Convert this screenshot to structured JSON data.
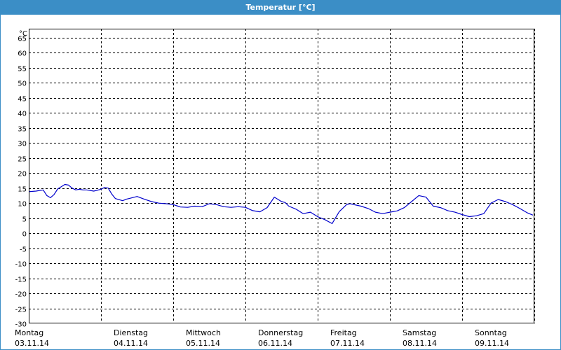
{
  "window": {
    "title": "Temperatur [°C]"
  },
  "chart_data": {
    "type": "line",
    "title": "Temperatur [°C]",
    "yunit": "°C",
    "ylim": [
      -30,
      68
    ],
    "yticks": [
      65,
      60,
      55,
      50,
      45,
      40,
      35,
      30,
      25,
      20,
      15,
      10,
      5,
      0,
      -5,
      -10,
      -15,
      -20,
      -25,
      -30
    ],
    "xlim": [
      0,
      7
    ],
    "grid": true,
    "days": [
      {
        "name": "Montag",
        "date": "03.11.14"
      },
      {
        "name": "Dienstag",
        "date": "04.11.14"
      },
      {
        "name": "Mittwoch",
        "date": "05.11.14"
      },
      {
        "name": "Donnerstag",
        "date": "06.11.14"
      },
      {
        "name": "Freitag",
        "date": "07.11.14"
      },
      {
        "name": "Samstag",
        "date": "08.11.14"
      },
      {
        "name": "Sonntag",
        "date": "09.11.14"
      }
    ],
    "series": [
      {
        "color": "#0000cc",
        "x": [
          0.0,
          0.1,
          0.2,
          0.25,
          0.3,
          0.35,
          0.4,
          0.5,
          0.55,
          0.6,
          0.65,
          0.7,
          0.75,
          0.8,
          0.9,
          1.0,
          1.05,
          1.1,
          1.15,
          1.2,
          1.3,
          1.35,
          1.4,
          1.5,
          1.6,
          1.7,
          1.8,
          1.9,
          2.0,
          2.1,
          2.2,
          2.3,
          2.4,
          2.5,
          2.6,
          2.7,
          2.8,
          2.9,
          3.0,
          3.1,
          3.2,
          3.3,
          3.4,
          3.5,
          3.55,
          3.6,
          3.7,
          3.8,
          3.9,
          4.0,
          4.1,
          4.2,
          4.3,
          4.4,
          4.45,
          4.5,
          4.6,
          4.7,
          4.8,
          4.9,
          5.0,
          5.1,
          5.2,
          5.3,
          5.4,
          5.5,
          5.55,
          5.6,
          5.7,
          5.8,
          5.9,
          6.0,
          6.1,
          6.2,
          6.3,
          6.4,
          6.5,
          6.6,
          6.7,
          6.8,
          6.9,
          6.98
        ],
        "values": [
          13.8,
          14.0,
          14.4,
          12.5,
          11.8,
          12.8,
          14.7,
          16.2,
          16.0,
          15.0,
          14.4,
          14.6,
          14.4,
          14.4,
          14.0,
          14.6,
          15.2,
          15.0,
          13.0,
          11.5,
          10.8,
          11.3,
          11.6,
          12.2,
          11.3,
          10.5,
          10.0,
          9.8,
          9.5,
          8.7,
          8.6,
          9.0,
          8.8,
          9.8,
          9.5,
          8.8,
          8.6,
          8.8,
          8.6,
          7.5,
          7.1,
          8.5,
          12.0,
          10.5,
          10.2,
          9.0,
          8.0,
          6.5,
          7.0,
          5.5,
          4.5,
          3.2,
          7.2,
          9.5,
          9.8,
          9.5,
          9.0,
          8.2,
          7.0,
          6.5,
          7.0,
          7.4,
          8.5,
          10.5,
          12.5,
          12.0,
          10.5,
          9.0,
          8.5,
          7.5,
          7.0,
          6.2,
          5.5,
          5.8,
          6.5,
          10.0,
          11.2,
          10.5,
          9.5,
          8.2,
          6.8,
          6.0
        ]
      }
    ]
  }
}
